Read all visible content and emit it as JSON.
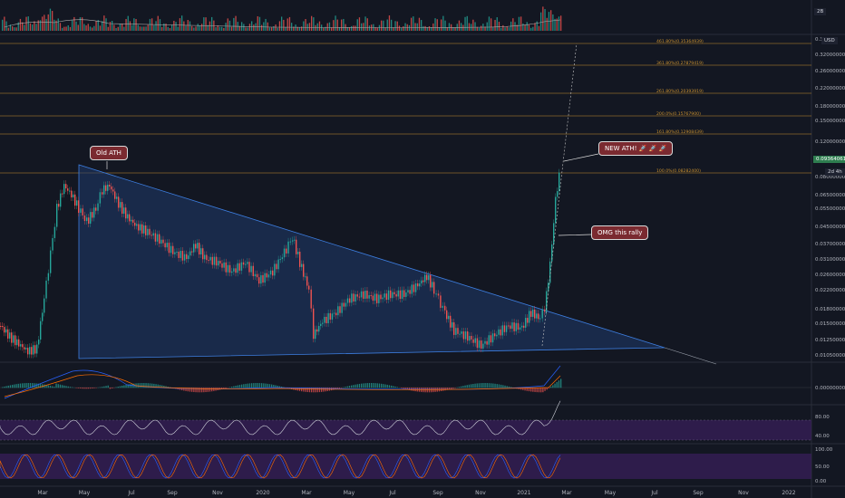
{
  "volume_label": "2B",
  "currency": "USD",
  "price_levels": [
    "0.32000000",
    "0.26000000",
    "0.22000000",
    "0.18000000",
    "0.15000000",
    "0.12000000",
    "0.10000000",
    "0.08000000",
    "0.06500000",
    "0.05500000",
    "0.04500000",
    "0.03700000",
    "0.03100000",
    "0.02600000",
    "0.02200000",
    "0.01800000",
    "0.01500000",
    "0.01250000",
    "0.01050000"
  ],
  "price_top": "0.3",
  "fib_levels": [
    {
      "label": "461.80%(0.35364939)"
    },
    {
      "label": "361.80%(0.27879419)"
    },
    {
      "label": "261.80%(0.20393919)"
    },
    {
      "label": "200.0%(0.15767900)"
    },
    {
      "label": "161.80%(0.12908439)"
    },
    {
      "label": "100.0%(0.08282400)"
    }
  ],
  "current_price": "0.09364061",
  "countdown": "2d 4h",
  "annotations": {
    "old_ath": "Old ATH",
    "new_ath": "NEW ATH! 🚀 🚀 🚀",
    "rally": "OMG this rally"
  },
  "macd_levels": [
    "0.00000000"
  ],
  "rsi_levels": [
    "80.00",
    "40.00"
  ],
  "stoch_levels": [
    "100.00",
    "50.00",
    "0.00"
  ],
  "date_labels": [
    "Mar",
    "May",
    "Jul",
    "Sep",
    "Nov",
    "2020",
    "Mar",
    "May",
    "Jul",
    "Sep",
    "Nov",
    "2021",
    "Mar",
    "May",
    "Jul",
    "Sep",
    "Nov",
    "2022"
  ],
  "colors": {
    "up": "#26a69a",
    "down": "#ef5350",
    "fib": "#c8902f",
    "triangle": "#3d7ee0",
    "callout": "#7a2a30"
  }
}
